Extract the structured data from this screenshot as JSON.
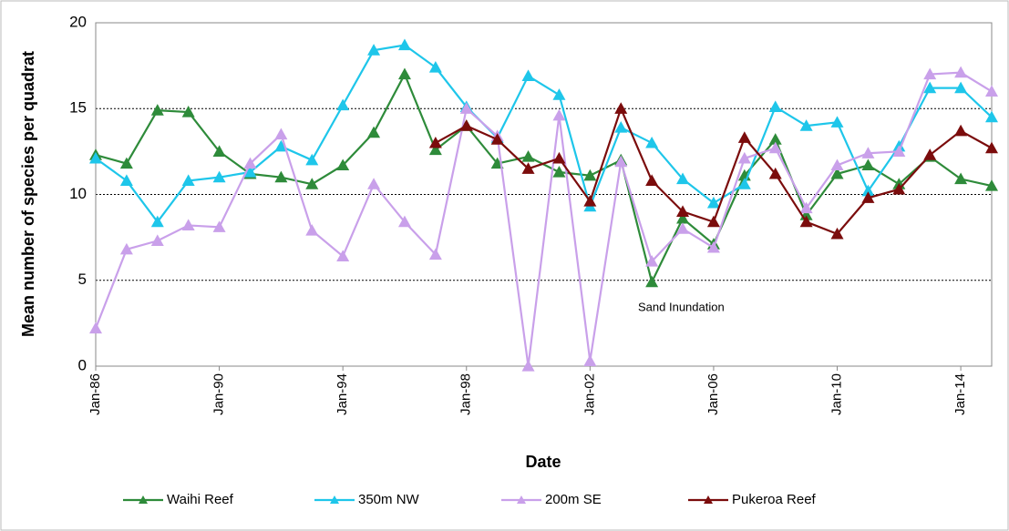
{
  "chart_data": {
    "type": "line",
    "y_label": "Mean number of species per quadrat",
    "x_label": "Date",
    "annotation": "Sand Inundation",
    "categories": [
      "Jan-86",
      null,
      null,
      null,
      "Jan-90",
      null,
      null,
      null,
      "Jan-94",
      null,
      null,
      null,
      "Jan-98",
      null,
      null,
      null,
      "Jan-02",
      null,
      null,
      null,
      "Jan-06",
      null,
      null,
      null,
      "Jan-10",
      null,
      null,
      null,
      "Jan-14",
      null
    ],
    "ylim": [
      0,
      20
    ],
    "yticks": [
      0,
      5,
      10,
      15,
      20
    ],
    "grid": true,
    "legend": "bottom",
    "series": [
      {
        "name": "Waihi Reef",
        "color": "#2e8b3a",
        "values": [
          12.3,
          11.8,
          14.9,
          14.8,
          12.5,
          11.2,
          11.0,
          10.6,
          11.7,
          13.6,
          17.0,
          12.6,
          14.0,
          11.8,
          12.2,
          11.3,
          11.1,
          12.0,
          4.9,
          8.6,
          7.1,
          11.1,
          13.2,
          8.8,
          11.2,
          11.7,
          10.6,
          12.2,
          10.9,
          10.5
        ]
      },
      {
        "name": "350m NW",
        "color": "#1ec6ea",
        "values": [
          12.1,
          10.8,
          8.4,
          10.8,
          11.0,
          11.3,
          12.8,
          12.0,
          15.2,
          18.4,
          18.7,
          17.4,
          15.1,
          13.3,
          16.9,
          15.8,
          9.3,
          13.9,
          13.0,
          10.9,
          9.5,
          10.6,
          15.1,
          14.0,
          14.2,
          10.2,
          12.8,
          16.2,
          16.2,
          14.5
        ]
      },
      {
        "name": "200m SE",
        "color": "#c9a0ea",
        "values": [
          2.2,
          6.8,
          7.3,
          8.2,
          8.1,
          11.8,
          13.5,
          7.9,
          6.4,
          10.6,
          8.4,
          6.5,
          15.0,
          13.4,
          0,
          14.6,
          0.3,
          11.9,
          6.1,
          8.0,
          6.9,
          12.1,
          12.7,
          9.2,
          11.7,
          12.4,
          12.5,
          17.0,
          17.1,
          16.0
        ]
      },
      {
        "name": "Pukeroa Reef",
        "color": "#7b0c0c",
        "values": [
          null,
          null,
          null,
          null,
          null,
          null,
          null,
          null,
          null,
          null,
          null,
          13.0,
          14.0,
          13.2,
          11.5,
          12.1,
          9.6,
          15.0,
          10.8,
          9.0,
          8.4,
          13.3,
          11.2,
          8.4,
          7.7,
          9.8,
          10.3,
          12.3,
          13.7,
          12.7
        ]
      }
    ]
  }
}
